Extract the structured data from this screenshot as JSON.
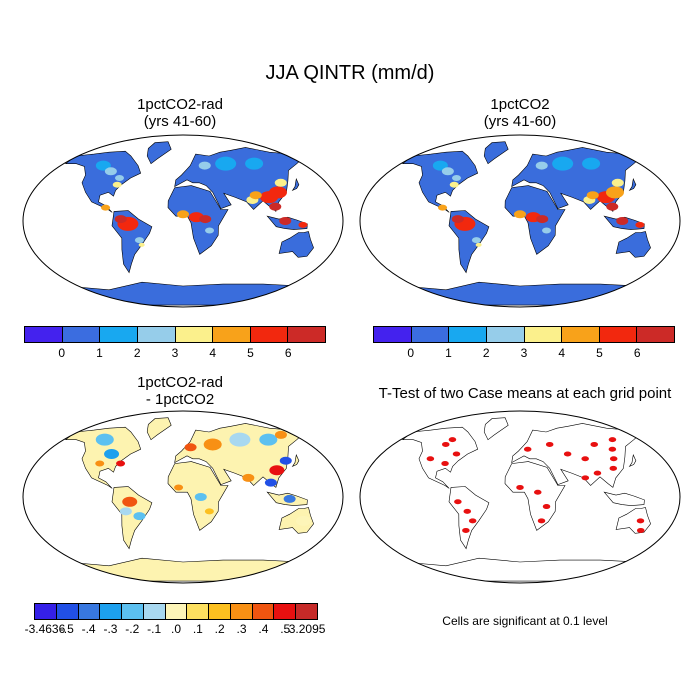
{
  "title": "JJA QINTR (mm/d)",
  "panels": [
    {
      "title": "1pctCO2-rad\n(yrs 41-60)"
    },
    {
      "title": "1pctCO2\n(yrs 41-60)"
    },
    {
      "title": "1pctCO2-rad\n- 1pctCO2"
    },
    {
      "title": "T-Test of two Case means at each grid point"
    }
  ],
  "colorbar_top": {
    "colors": [
      "#4422ee",
      "#3b6de0",
      "#18a8f0",
      "#96cdea",
      "#fbf08c",
      "#f8a21a",
      "#f2280e",
      "#cc2a27"
    ],
    "ticks": [
      "0",
      "1",
      "2",
      "3",
      "4",
      "5",
      "6"
    ]
  },
  "colorbar_diff": {
    "colors": [
      "#3520e8",
      "#2150e6",
      "#3878e0",
      "#1da0ee",
      "#5cc0f0",
      "#a8d8f0",
      "#fdf5b8",
      "#fde060",
      "#fcc020",
      "#f89014",
      "#f05510",
      "#e81010",
      "#c62a28"
    ],
    "ticks": [
      "-3.4636",
      "-.5",
      "-.4",
      "-.3",
      "-.2",
      "-.1",
      ".0",
      ".1",
      ".2",
      ".3",
      ".4",
      ".5",
      "3.2095"
    ]
  },
  "significance_note": "Cells are significant at 0.1 level",
  "significance_color": "#e81010"
}
